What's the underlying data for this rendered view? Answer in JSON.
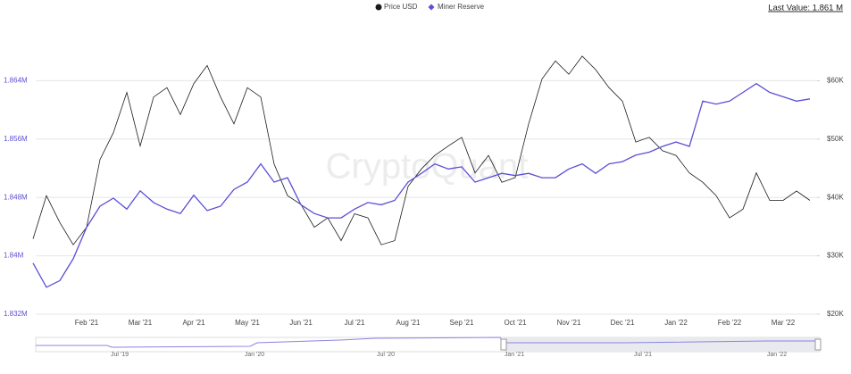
{
  "chart_data": {
    "type": "line",
    "legend": [
      "Price USD",
      "Miner Reserve"
    ],
    "last_value_label": "Last Value: 1.861 M",
    "watermark": "CryptoQuant",
    "categories": [
      null,
      null,
      null,
      null,
      "Feb '21",
      null,
      null,
      null,
      "Mar '21",
      null,
      null,
      null,
      "Apr '21",
      null,
      null,
      null,
      "May '21",
      null,
      null,
      null,
      "Jun '21",
      null,
      null,
      null,
      "Jul '21",
      null,
      null,
      null,
      "Aug '21",
      null,
      null,
      null,
      "Sep '21",
      null,
      null,
      null,
      "Oct '21",
      null,
      null,
      null,
      "Nov '21",
      null,
      null,
      null,
      "Dec '21",
      null,
      null,
      null,
      "Jan '22",
      null,
      null,
      null,
      "Feb '22",
      null,
      null,
      null,
      "Mar '22",
      null,
      null
    ],
    "series": [
      {
        "name": "Price USD",
        "color": "#1a1a1a",
        "axis": "y2",
        "values": [
          32900,
          40300,
          35700,
          31900,
          34900,
          46500,
          51100,
          58000,
          48800,
          57200,
          58800,
          54200,
          59500,
          62600,
          57200,
          52600,
          58800,
          57200,
          45700,
          40300,
          38800,
          34900,
          36500,
          32600,
          37200,
          36500,
          31900,
          32600,
          41900,
          44900,
          47200,
          48800,
          50300,
          44200,
          47200,
          42600,
          43400,
          52600,
          60300,
          63400,
          61100,
          64200,
          61900,
          58800,
          56500,
          49500,
          50300,
          48000,
          47200,
          44200,
          42600,
          40300,
          36500,
          38000,
          44200,
          39500,
          39500,
          41100,
          39500
        ]
      },
      {
        "name": "Miner Reserve",
        "color": "#5b4fd6",
        "values": [
          1839000,
          1835700,
          1836600,
          1839600,
          1843900,
          1846800,
          1847900,
          1846400,
          1848900,
          1847300,
          1846400,
          1845800,
          1848300,
          1846200,
          1846800,
          1849100,
          1850100,
          1852600,
          1850100,
          1850700,
          1847000,
          1845800,
          1845200,
          1845200,
          1846400,
          1847300,
          1847000,
          1847600,
          1850100,
          1851300,
          1852600,
          1851900,
          1852200,
          1850100,
          1850700,
          1851300,
          1851000,
          1851300,
          1850700,
          1850700,
          1851900,
          1852600,
          1851300,
          1852600,
          1852900,
          1853800,
          1854200,
          1855000,
          1855600,
          1855000,
          1861200,
          1860800,
          1861200,
          1862400,
          1863600,
          1862400,
          1861800,
          1861200,
          1861500
        ]
      }
    ],
    "ylim": [
      1832000,
      1872000
    ],
    "yticks": [
      {
        "value": 1832000,
        "label": "1.832M"
      },
      {
        "value": 1840000,
        "label": "1.84M"
      },
      {
        "value": 1848000,
        "label": "1.848M"
      },
      {
        "value": 1856000,
        "label": "1.856M"
      },
      {
        "value": 1864000,
        "label": "1.864M"
      }
    ],
    "y2lim": [
      20000,
      70000
    ],
    "y2ticks": [
      {
        "value": 20000,
        "label": "$20K"
      },
      {
        "value": 30000,
        "label": "$30K"
      },
      {
        "value": 40000,
        "label": "$40K"
      },
      {
        "value": 50000,
        "label": "$50K"
      },
      {
        "value": 60000,
        "label": "$60K"
      }
    ],
    "grid": true,
    "navigator_labels": [
      "Jul '19",
      "Jan '20",
      "Jul '20",
      "Jan '21",
      "Jul '21",
      "Jan '22"
    ]
  }
}
